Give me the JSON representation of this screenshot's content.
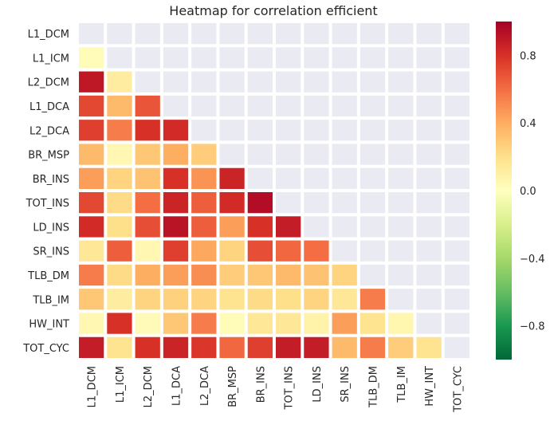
{
  "chart_data": {
    "type": "heatmap",
    "title": "Heatmap for correlation efficient",
    "variables": [
      "L1_DCM",
      "L1_ICM",
      "L2_DCM",
      "L1_DCA",
      "L2_DCA",
      "BR_MSP",
      "BR_INS",
      "TOT_INS",
      "LD_INS",
      "SR_INS",
      "TLB_DM",
      "TLB_IM",
      "HW_INT",
      "TOT_CYC"
    ],
    "mask": "upper-triangle-including-diagonal",
    "lower_triangle_values": [
      [],
      [
        0.02
      ],
      [
        0.9,
        0.12
      ],
      [
        0.72,
        0.35,
        0.68
      ],
      [
        0.75,
        0.55,
        0.8,
        0.82
      ],
      [
        0.35,
        0.05,
        0.3,
        0.4,
        0.28
      ],
      [
        0.45,
        0.25,
        0.32,
        0.8,
        0.48,
        0.85
      ],
      [
        0.72,
        0.22,
        0.6,
        0.85,
        0.65,
        0.82,
        0.95
      ],
      [
        0.82,
        0.2,
        0.7,
        0.92,
        0.65,
        0.45,
        0.8,
        0.88
      ],
      [
        0.15,
        0.65,
        0.05,
        0.75,
        0.42,
        0.25,
        0.7,
        0.62,
        0.6
      ],
      [
        0.55,
        0.22,
        0.4,
        0.45,
        0.5,
        0.28,
        0.3,
        0.35,
        0.32,
        0.25
      ],
      [
        0.3,
        0.12,
        0.25,
        0.26,
        0.25,
        0.18,
        0.22,
        0.2,
        0.25,
        0.15,
        0.55
      ],
      [
        0.05,
        0.8,
        0.03,
        0.3,
        0.55,
        0.02,
        0.15,
        0.15,
        0.08,
        0.45,
        0.18,
        0.06
      ],
      [
        0.88,
        0.18,
        0.8,
        0.85,
        0.78,
        0.62,
        0.75,
        0.88,
        0.88,
        0.35,
        0.55,
        0.28,
        0.18
      ]
    ],
    "colormap": "RdYlGn_r",
    "vmin": -1.0,
    "vmax": 1.0,
    "colorbar_ticks": [
      "0.8",
      "0.4",
      "0.0",
      "−0.4",
      "−0.8"
    ],
    "colorbar_tick_values": [
      0.8,
      0.4,
      0.0,
      -0.4,
      -0.8
    ],
    "colors": {
      "masked_cell": "#eaeaf2",
      "grid_line": "#ffffff",
      "text": "#262626"
    }
  }
}
